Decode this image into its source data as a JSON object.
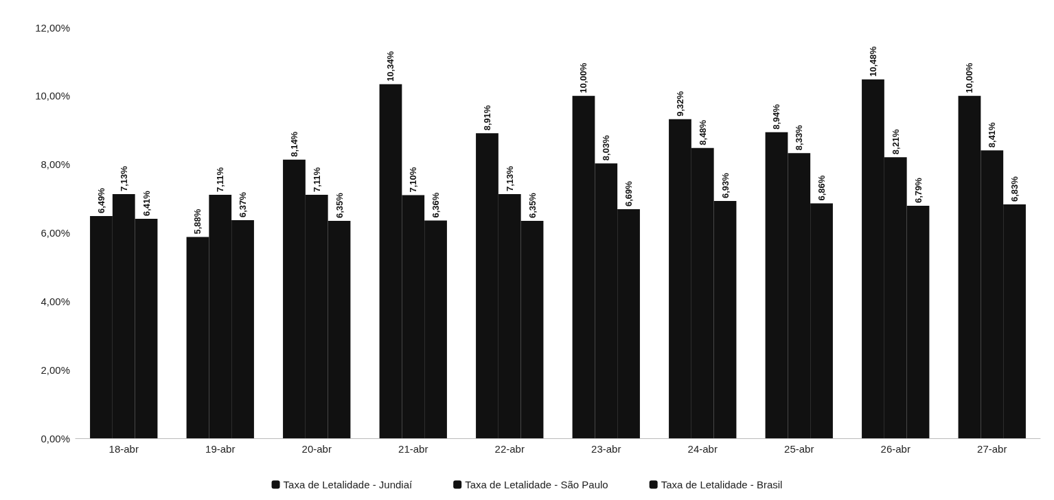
{
  "chart_data": {
    "type": "bar",
    "categories": [
      "18-abr",
      "19-abr",
      "20-abr",
      "21-abr",
      "22-abr",
      "23-abr",
      "24-abr",
      "25-abr",
      "26-abr",
      "27-abr"
    ],
    "series": [
      {
        "name": "Taxa de Letalidade - Jundiaí",
        "color": "#111111",
        "values": [
          6.49,
          5.88,
          8.14,
          10.34,
          8.91,
          10.0,
          9.32,
          8.94,
          10.48,
          10.0
        ],
        "value_labels": [
          "6,49%",
          "5,88%",
          "8,14%",
          "10,34%",
          "8,91%",
          "10,00%",
          "9,32%",
          "8,94%",
          "10,48%",
          "10,00%"
        ]
      },
      {
        "name": "Taxa de Letalidade - São Paulo",
        "color": "#111111",
        "values": [
          7.13,
          7.11,
          7.11,
          7.1,
          7.13,
          8.03,
          8.48,
          8.33,
          8.21,
          8.41
        ],
        "value_labels": [
          "7,13%",
          "7,11%",
          "7,11%",
          "7,10%",
          "7,13%",
          "8,03%",
          "8,48%",
          "8,33%",
          "8,21%",
          "8,41%"
        ]
      },
      {
        "name": "Taxa de Letalidade - Brasil",
        "color": "#111111",
        "values": [
          6.41,
          6.37,
          6.35,
          6.36,
          6.35,
          6.69,
          6.93,
          6.86,
          6.79,
          6.83
        ],
        "value_labels": [
          "6,41%",
          "6,37%",
          "6,35%",
          "6,36%",
          "6,35%",
          "6,69%",
          "6,93%",
          "6,86%",
          "6,79%",
          "6,83%"
        ]
      }
    ],
    "ylim": [
      0,
      12
    ],
    "yticks": [
      {
        "value": 0,
        "label": "0,00%"
      },
      {
        "value": 2,
        "label": "2,00%"
      },
      {
        "value": 4,
        "label": "4,00%"
      },
      {
        "value": 6,
        "label": "6,00%"
      },
      {
        "value": 8,
        "label": "8,00%"
      },
      {
        "value": 10,
        "label": "10,00%"
      },
      {
        "value": 12,
        "label": "12,00%"
      }
    ],
    "grid": false,
    "legend": "bottom"
  }
}
